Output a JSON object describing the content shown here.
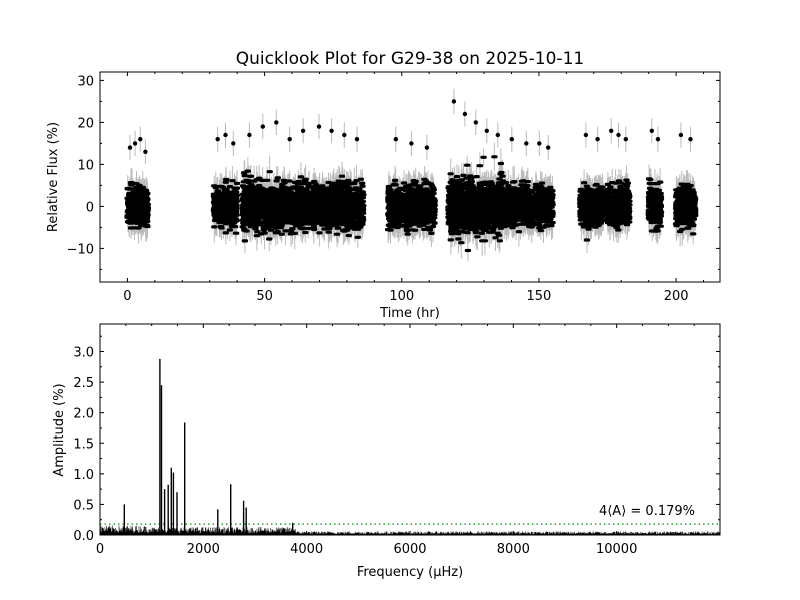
{
  "chart_data": [
    {
      "type": "scatter",
      "title": "Quicklook Plot for G29-38 on 2025-10-11",
      "xlabel": "Time (hr)",
      "ylabel": "Relative Flux (%)",
      "xlim": [
        -10,
        216
      ],
      "ylim": [
        -18,
        32
      ],
      "xticks": [
        0,
        50,
        100,
        150,
        200
      ],
      "yticks": [
        -10,
        0,
        10,
        20,
        30
      ],
      "grid": false,
      "point_color": "#000000",
      "errorbar_color": "#bbbbbb",
      "segments": [
        {
          "x": [
            0.0,
            7.5
          ],
          "y_mean": 0.0,
          "y_spread": [
            -8,
            16
          ],
          "error": 3.0,
          "outliers_high": [
            14,
            15,
            16,
            13
          ]
        },
        {
          "x": [
            31.5,
            40.0
          ],
          "y_mean": 0.0,
          "y_spread": [
            -8,
            18
          ],
          "error": 3.0,
          "outliers_high": [
            16,
            17,
            15
          ]
        },
        {
          "x": [
            42.0,
            66.5
          ],
          "y_mean": 0.0,
          "y_spread": [
            -8,
            20
          ],
          "error": 3.0,
          "outliers_high": [
            17,
            19,
            20,
            16,
            18
          ]
        },
        {
          "x": [
            67.5,
            86.0
          ],
          "y_mean": 0.0,
          "y_spread": [
            -8,
            19
          ],
          "error": 3.0,
          "outliers_high": [
            19,
            18,
            17,
            16
          ]
        },
        {
          "x": [
            95.0,
            112.0
          ],
          "y_mean": 0.0,
          "y_spread": [
            -9,
            16
          ],
          "error": 3.0,
          "outliers_high": [
            16,
            15,
            14
          ]
        },
        {
          "x": [
            117.0,
            137.0
          ],
          "y_mean": 0.0,
          "y_spread": [
            -10,
            25
          ],
          "error": 3.0,
          "outliers_high": [
            25,
            22,
            20,
            18,
            17
          ]
        },
        {
          "x": [
            137.5,
            148.0
          ],
          "y_mean": 0.0,
          "y_spread": [
            -8,
            16
          ],
          "error": 3.0,
          "outliers_high": [
            16,
            15
          ]
        },
        {
          "x": [
            148.5,
            155.0
          ],
          "y_mean": 0.0,
          "y_spread": [
            -9,
            15
          ],
          "error": 3.0,
          "outliers_high": [
            15,
            14
          ]
        },
        {
          "x": [
            165.0,
            173.5
          ],
          "y_mean": 0.0,
          "y_spread": [
            -7,
            17
          ],
          "error": 3.0,
          "outliers_high": [
            17,
            16
          ]
        },
        {
          "x": [
            175.0,
            183.0
          ],
          "y_mean": 0.0,
          "y_spread": [
            -7,
            18
          ],
          "error": 3.0,
          "outliers_high": [
            18,
            17,
            16
          ]
        },
        {
          "x": [
            190.0,
            194.5
          ],
          "y_mean": 0.0,
          "y_spread": [
            -7,
            18
          ],
          "error": 3.0,
          "outliers_high": [
            18,
            16
          ]
        },
        {
          "x": [
            200.0,
            207.0
          ],
          "y_mean": 0.0,
          "y_spread": [
            -7,
            17
          ],
          "error": 3.0,
          "outliers_high": [
            17,
            16
          ]
        }
      ]
    },
    {
      "type": "line",
      "title": "",
      "xlabel": "Frequency (μHz)",
      "ylabel": "Amplitude (%)",
      "xlim": [
        0,
        12000
      ],
      "ylim": [
        0,
        3.45
      ],
      "xticks": [
        0,
        2000,
        4000,
        6000,
        8000,
        10000
      ],
      "yticks": [
        0.0,
        0.5,
        1.0,
        1.5,
        2.0,
        2.5,
        3.0
      ],
      "ytick_labels": [
        "0.0",
        "0.5",
        "1.0",
        "1.5",
        "2.0",
        "2.5",
        "3.0"
      ],
      "grid": false,
      "line_color": "#000000",
      "noise_floor": 0.045,
      "peaks": [
        {
          "x": 470,
          "y": 0.5
        },
        {
          "x": 1160,
          "y": 2.88
        },
        {
          "x": 1190,
          "y": 2.45
        },
        {
          "x": 1250,
          "y": 0.75
        },
        {
          "x": 1320,
          "y": 0.82
        },
        {
          "x": 1380,
          "y": 1.1
        },
        {
          "x": 1420,
          "y": 1.02
        },
        {
          "x": 1490,
          "y": 0.7
        },
        {
          "x": 1640,
          "y": 1.84
        },
        {
          "x": 2280,
          "y": 0.42
        },
        {
          "x": 2530,
          "y": 0.83
        },
        {
          "x": 2780,
          "y": 0.56
        },
        {
          "x": 2830,
          "y": 0.45
        },
        {
          "x": 3730,
          "y": 0.2
        }
      ],
      "threshold": {
        "value": 0.179,
        "label": "4⟨A⟩ = 0.179%",
        "color": "#2ca02c",
        "style": "dotted"
      }
    }
  ]
}
